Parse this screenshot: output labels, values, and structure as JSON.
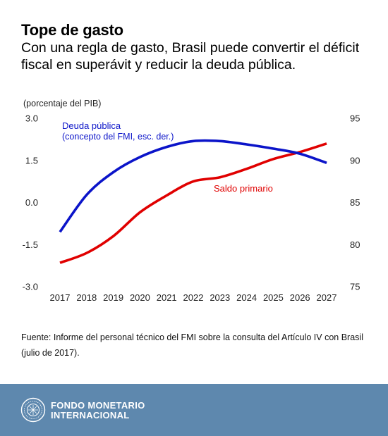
{
  "header": {
    "title": "Tope de gasto",
    "subtitle": "Con una regla de gasto, Brasil puede convertir el déficit fiscal en superávit y reducir la deuda pública."
  },
  "chart_data": {
    "type": "line",
    "y_unit_label": "(porcentaje del PIB)",
    "x": [
      "2017",
      "2018",
      "2019",
      "2020",
      "2021",
      "2022",
      "2023",
      "2024",
      "2025",
      "2026",
      "2027"
    ],
    "left_axis": {
      "ylim": [
        -3.0,
        3.0
      ],
      "ticks": [
        "3.0",
        "1.5",
        "0.0",
        "-1.5",
        "-3.0"
      ]
    },
    "right_axis": {
      "ylim": [
        75,
        95
      ],
      "ticks": [
        "95",
        "90",
        "85",
        "80",
        "75"
      ]
    },
    "grid": false,
    "series": [
      {
        "name": "Saldo primario",
        "axis": "left",
        "color": "#e00000",
        "values": [
          -2.15,
          -1.8,
          -1.2,
          -0.35,
          0.25,
          0.75,
          0.9,
          1.2,
          1.55,
          1.8,
          2.1
        ]
      },
      {
        "name_lines": [
          "Deuda pública",
          "(concepto del FMI, esc. der.)"
        ],
        "axis": "right",
        "color": "#0b14c9",
        "values": [
          81.5,
          85.9,
          88.6,
          90.4,
          91.6,
          92.3,
          92.3,
          91.9,
          91.4,
          90.8,
          89.7
        ]
      }
    ]
  },
  "source": "Fuente: Informe del personal técnico del FMI sobre la consulta del Artículo IV con Brasil (julio de 2017).",
  "footer": {
    "brand_line1": "FONDO MONETARIO",
    "brand_line2": "INTERNACIONAL",
    "seal_icon": "imf-seal-icon"
  }
}
